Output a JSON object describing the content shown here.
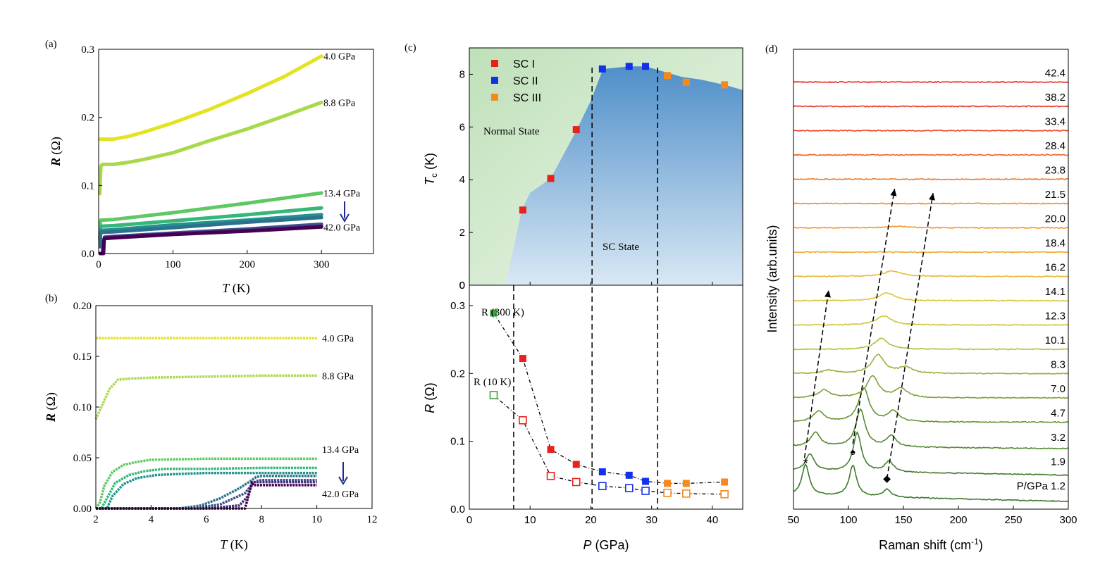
{
  "colors": {
    "p4_0": "#e3e320",
    "p8_8": "#a8d94a",
    "p13_4": "#5ec962",
    "p16": "#35b779",
    "p20": "#21918c",
    "p28": "#2c728e",
    "p33": "#3b528b",
    "p38": "#472d7b",
    "p42": "#440154",
    "arrow": "#1f2a8c",
    "sc1": "#e8221b",
    "sc2": "#1531e8",
    "sc3": "#f5891e",
    "green": "#3aa041",
    "normal_bg": "#cfe8cc",
    "sc_bg": "#5b9bd0"
  },
  "panels": {
    "a": {
      "tag": "(a)"
    },
    "b": {
      "tag": "(b)"
    },
    "c": {
      "tag": "(c)",
      "normal_label": "Normal State",
      "sc_label": "SC State",
      "top_ylabel": "T",
      "top_ylabel_sub": "c",
      "top_ylabel_unit": " (K)",
      "r300_label": "R (300 K)",
      "r10_label": "R (10 K)"
    },
    "d": {
      "tag": "(d)"
    }
  },
  "chart_data": [
    {
      "id": "a",
      "type": "line",
      "title": "",
      "xlabel": "T",
      "xlabel_unit": " (K)",
      "ylabel": "R",
      "ylabel_unit": " (Ω)",
      "xlim": [
        0,
        370
      ],
      "ylim": [
        0,
        0.3
      ],
      "xticks": [
        "0",
        "100",
        "200",
        "300"
      ],
      "yticks": [
        "0.0",
        "0.1",
        "0.2",
        "0.3"
      ],
      "arrow": "down",
      "series": [
        {
          "name": "4.0 GPa",
          "color_key": "p4_0",
          "x": [
            1.5,
            5,
            20,
            40,
            60,
            80,
            100,
            150,
            200,
            250,
            300
          ],
          "y": [
            0.168,
            0.168,
            0.168,
            0.172,
            0.178,
            0.185,
            0.192,
            0.212,
            0.235,
            0.26,
            0.29
          ]
        },
        {
          "name": "8.8 GPa",
          "color_key": "p8_8",
          "x": [
            1.5,
            2,
            3,
            5,
            20,
            40,
            60,
            100,
            150,
            200,
            250,
            300
          ],
          "y": [
            0.088,
            0.105,
            0.128,
            0.131,
            0.131,
            0.134,
            0.138,
            0.148,
            0.166,
            0.183,
            0.202,
            0.222
          ]
        },
        {
          "name": "13.4 GPa",
          "color_key": "p13_4",
          "x": [
            1.5,
            2.5,
            3,
            20,
            100,
            200,
            300
          ],
          "y": [
            0.02,
            0.046,
            0.049,
            0.05,
            0.06,
            0.074,
            0.089
          ]
        },
        {
          "name": "",
          "color_key": "p16",
          "x": [
            2,
            2.5,
            3,
            20,
            100,
            200,
            300
          ],
          "y": [
            0.015,
            0.035,
            0.04,
            0.041,
            0.048,
            0.057,
            0.067
          ]
        },
        {
          "name": "",
          "color_key": "p20",
          "x": [
            2,
            2.5,
            3,
            20,
            100,
            200,
            300
          ],
          "y": [
            0.012,
            0.03,
            0.034,
            0.035,
            0.042,
            0.049,
            0.057
          ]
        },
        {
          "name": "",
          "color_key": "p28",
          "x": [
            2,
            2.5,
            3,
            20,
            100,
            200,
            300
          ],
          "y": [
            0.01,
            0.028,
            0.031,
            0.032,
            0.038,
            0.046,
            0.053
          ]
        },
        {
          "name": "",
          "color_key": "p33",
          "x": [
            2,
            5,
            6,
            8,
            20,
            100,
            200,
            300
          ],
          "y": [
            0.0,
            0.0,
            0.015,
            0.024,
            0.025,
            0.03,
            0.036,
            0.043
          ]
        },
        {
          "name": "",
          "color_key": "p38",
          "x": [
            2,
            6,
            7,
            8,
            20,
            100,
            200,
            300
          ],
          "y": [
            0.0,
            0.0,
            0.02,
            0.023,
            0.024,
            0.029,
            0.034,
            0.04
          ]
        },
        {
          "name": "42.0 GPa",
          "color_key": "p42",
          "x": [
            2,
            6.5,
            7.5,
            8,
            20,
            100,
            200,
            300
          ],
          "y": [
            0.0,
            0.0,
            0.022,
            0.022,
            0.023,
            0.028,
            0.033,
            0.039
          ]
        }
      ]
    },
    {
      "id": "b",
      "type": "line",
      "title": "",
      "xlabel": "T",
      "xlabel_unit": " (K)",
      "ylabel": "R",
      "ylabel_unit": " (Ω)",
      "xlim": [
        2,
        12
      ],
      "ylim": [
        0,
        0.2
      ],
      "xticks": [
        "2",
        "4",
        "6",
        "8",
        "10",
        "12"
      ],
      "yticks": [
        "0.00",
        "0.05",
        "0.10",
        "0.15",
        "0.20"
      ],
      "arrow": "down",
      "series": [
        {
          "name": "4.0 GPa",
          "color_key": "p4_0",
          "x": [
            2,
            4,
            6,
            8,
            10
          ],
          "y": [
            0.168,
            0.168,
            0.168,
            0.168,
            0.168
          ]
        },
        {
          "name": "8.8 GPa",
          "color_key": "p8_8",
          "x": [
            2,
            2.2,
            2.5,
            2.8,
            3.2,
            4,
            6,
            8,
            10
          ],
          "y": [
            0.088,
            0.1,
            0.118,
            0.127,
            0.128,
            0.129,
            0.13,
            0.131,
            0.131
          ]
        },
        {
          "name": "13.4 GPa",
          "color_key": "p13_4",
          "x": [
            2,
            2.15,
            2.3,
            2.6,
            3.0,
            3.5,
            4,
            6,
            8,
            10
          ],
          "y": [
            0.0,
            0.006,
            0.022,
            0.036,
            0.043,
            0.046,
            0.048,
            0.049,
            0.049,
            0.049
          ]
        },
        {
          "name": "",
          "color_key": "p16",
          "x": [
            2,
            2.2,
            2.4,
            2.7,
            3.2,
            3.8,
            4.5,
            6,
            8,
            10
          ],
          "y": [
            0.0,
            0.0,
            0.01,
            0.025,
            0.033,
            0.037,
            0.039,
            0.039,
            0.04,
            0.04
          ]
        },
        {
          "name": "",
          "color_key": "p20",
          "x": [
            2,
            2.4,
            2.6,
            3.0,
            3.5,
            4.2,
            5,
            6,
            8,
            10
          ],
          "y": [
            0.0,
            0.0,
            0.012,
            0.024,
            0.03,
            0.033,
            0.034,
            0.035,
            0.035,
            0.035
          ]
        },
        {
          "name": "",
          "color_key": "p28",
          "x": [
            2,
            5,
            5.8,
            6.5,
            7.2,
            7.6,
            7.8,
            8,
            10
          ],
          "y": [
            0.0,
            0.0,
            0.003,
            0.01,
            0.02,
            0.027,
            0.031,
            0.032,
            0.032
          ]
        },
        {
          "name": "",
          "color_key": "p33",
          "x": [
            2,
            5.5,
            6.5,
            7.4,
            7.6,
            7.8,
            8,
            10
          ],
          "y": [
            0.0,
            0.0,
            0.004,
            0.015,
            0.022,
            0.027,
            0.028,
            0.028
          ]
        },
        {
          "name": "",
          "color_key": "p38",
          "x": [
            2,
            6,
            7.2,
            7.5,
            7.6,
            7.7,
            8,
            10
          ],
          "y": [
            0.0,
            0.0,
            0.003,
            0.012,
            0.02,
            0.026,
            0.026,
            0.026
          ]
        },
        {
          "name": "42.0 GPa",
          "color_key": "p42",
          "x": [
            2,
            7.4,
            7.55,
            7.65,
            7.7,
            7.9,
            8,
            10
          ],
          "y": [
            0.0,
            0.0,
            0.015,
            0.026,
            0.023,
            0.023,
            0.023,
            0.023
          ]
        }
      ]
    },
    {
      "id": "c-top",
      "type": "scatter",
      "title": "",
      "xlabel": "",
      "ylabel": "T_c (K)",
      "xlim": [
        0,
        45
      ],
      "ylim": [
        0,
        9
      ],
      "yticks": [
        "0",
        "2",
        "4",
        "6",
        "8"
      ],
      "boundary": {
        "x": [
          6,
          8.6,
          10,
          13.4,
          17.7,
          20,
          22,
          26.4,
          29,
          32,
          35,
          38,
          42,
          45
        ],
        "y": [
          0,
          2.85,
          3.5,
          4.05,
          5.9,
          7.0,
          8.2,
          8.3,
          8.3,
          8.1,
          7.9,
          7.8,
          7.6,
          7.4
        ]
      },
      "legend": "top-left",
      "series": [
        {
          "name": "SC I",
          "color_key": "sc1",
          "x": [
            8.8,
            13.4,
            17.6
          ],
          "y": [
            2.85,
            4.05,
            5.9
          ]
        },
        {
          "name": "SC II",
          "color_key": "sc2",
          "x": [
            21.9,
            26.3,
            29.0
          ],
          "y": [
            8.2,
            8.3,
            8.3
          ]
        },
        {
          "name": "SC III",
          "color_key": "sc3",
          "x": [
            32.6,
            35.7,
            42.0
          ],
          "y": [
            7.95,
            7.7,
            7.6
          ]
        }
      ],
      "vlines": [
        20.2,
        31.0
      ]
    },
    {
      "id": "c-bottom",
      "type": "scatter",
      "title": "",
      "xlabel": "P",
      "xlabel_unit": " (GPa)",
      "ylabel": "R",
      "ylabel_unit": " (Ω)",
      "xlim": [
        0,
        45
      ],
      "ylim": [
        0,
        0.33
      ],
      "xticks": [
        "0",
        "10",
        "20",
        "30",
        "40"
      ],
      "yticks": [
        "0.0",
        "0.1",
        "0.2",
        "0.3"
      ],
      "vlines": [
        7.3,
        20.2,
        31.0
      ],
      "series": [
        {
          "name": "R (300 K)",
          "filled": true,
          "x": [
            4.0,
            8.8,
            13.4,
            17.6,
            21.9,
            26.3,
            29.0,
            32.6,
            35.7,
            42.0
          ],
          "y": [
            0.289,
            0.222,
            0.088,
            0.066,
            0.055,
            0.05,
            0.041,
            0.038,
            0.038,
            0.04
          ],
          "color_keys": [
            "green",
            "sc1",
            "sc1",
            "sc1",
            "sc2",
            "sc2",
            "sc2",
            "sc3",
            "sc3",
            "sc3"
          ]
        },
        {
          "name": "R (10 K)",
          "filled": false,
          "x": [
            4.0,
            8.8,
            13.4,
            17.6,
            21.9,
            26.3,
            29.0,
            32.6,
            35.7,
            42.0
          ],
          "y": [
            0.168,
            0.131,
            0.049,
            0.04,
            0.034,
            0.031,
            0.027,
            0.024,
            0.023,
            0.022
          ],
          "color_keys": [
            "green",
            "sc1",
            "sc1",
            "sc1",
            "sc2",
            "sc2",
            "sc2",
            "sc3",
            "sc3",
            "sc3"
          ]
        }
      ]
    },
    {
      "id": "d",
      "type": "line",
      "title": "",
      "xlabel": "Raman shift (cm",
      "xlabel_sup": "-1",
      "xlabel_end": ")",
      "ylabel": "Intensity (arb.units)",
      "xlim": [
        50,
        300
      ],
      "xticks": [
        "50",
        "100",
        "150",
        "200",
        "250",
        "300"
      ],
      "pressure_prefix": "P/GPa",
      "markers": [
        {
          "symbol": "*",
          "x": 61,
          "trace": 0
        },
        {
          "symbol": "♠",
          "x": 104,
          "trace": 0
        },
        {
          "symbol": "◆",
          "x": 135,
          "trace": 0
        }
      ],
      "series": [
        {
          "name": "1.2",
          "color": "#3d7a2e",
          "peaks": [
            [
              61,
              1.0
            ],
            [
              104,
              1.0
            ],
            [
              135,
              0.25
            ]
          ]
        },
        {
          "name": "1.9",
          "color": "#447f2f",
          "peaks": [
            [
              65,
              0.55
            ],
            [
              108,
              1.25
            ],
            [
              137,
              0.35
            ]
          ]
        },
        {
          "name": "3.2",
          "color": "#538a32",
          "peaks": [
            [
              70,
              0.45
            ],
            [
              111,
              1.2
            ],
            [
              139,
              0.35
            ]
          ]
        },
        {
          "name": "4.7",
          "color": "#669536",
          "peaks": [
            [
              73,
              0.35
            ],
            [
              114,
              1.1
            ],
            [
              141,
              0.35
            ]
          ]
        },
        {
          "name": "7.0",
          "color": "#7fa23a",
          "peaks": [
            [
              78,
              0.25
            ],
            [
              122,
              0.7
            ],
            [
              148,
              0.3
            ]
          ]
        },
        {
          "name": "8.3",
          "color": "#9bb03d",
          "peaks": [
            [
              82,
              0.1
            ],
            [
              127,
              0.6
            ],
            [
              152,
              0.2
            ]
          ]
        },
        {
          "name": "10.1",
          "color": "#b5bf3e",
          "peaks": [
            [
              130,
              0.35
            ]
          ]
        },
        {
          "name": "12.3",
          "color": "#cfc53d",
          "peaks": [
            [
              132,
              0.3
            ]
          ]
        },
        {
          "name": "14.1",
          "color": "#e0c53a",
          "peaks": [
            [
              135,
              0.25
            ]
          ]
        },
        {
          "name": "16.2",
          "color": "#eab937",
          "peaks": [
            [
              140,
              0.18
            ]
          ]
        },
        {
          "name": "18.4",
          "color": "#f0a832",
          "peaks": []
        },
        {
          "name": "20.0",
          "color": "#f2982e",
          "peaks": [
            [
              145,
              0.05
            ]
          ]
        },
        {
          "name": "21.5",
          "color": "#f08a2b",
          "peaks": []
        },
        {
          "name": "23.8",
          "color": "#ee7a29",
          "peaks": []
        },
        {
          "name": "28.4",
          "color": "#ec6127",
          "peaks": []
        },
        {
          "name": "33.4",
          "color": "#ea4a26",
          "peaks": []
        },
        {
          "name": "38.2",
          "color": "#e83725",
          "peaks": []
        },
        {
          "name": "42.4",
          "color": "#e42a24",
          "peaks": []
        }
      ]
    }
  ]
}
